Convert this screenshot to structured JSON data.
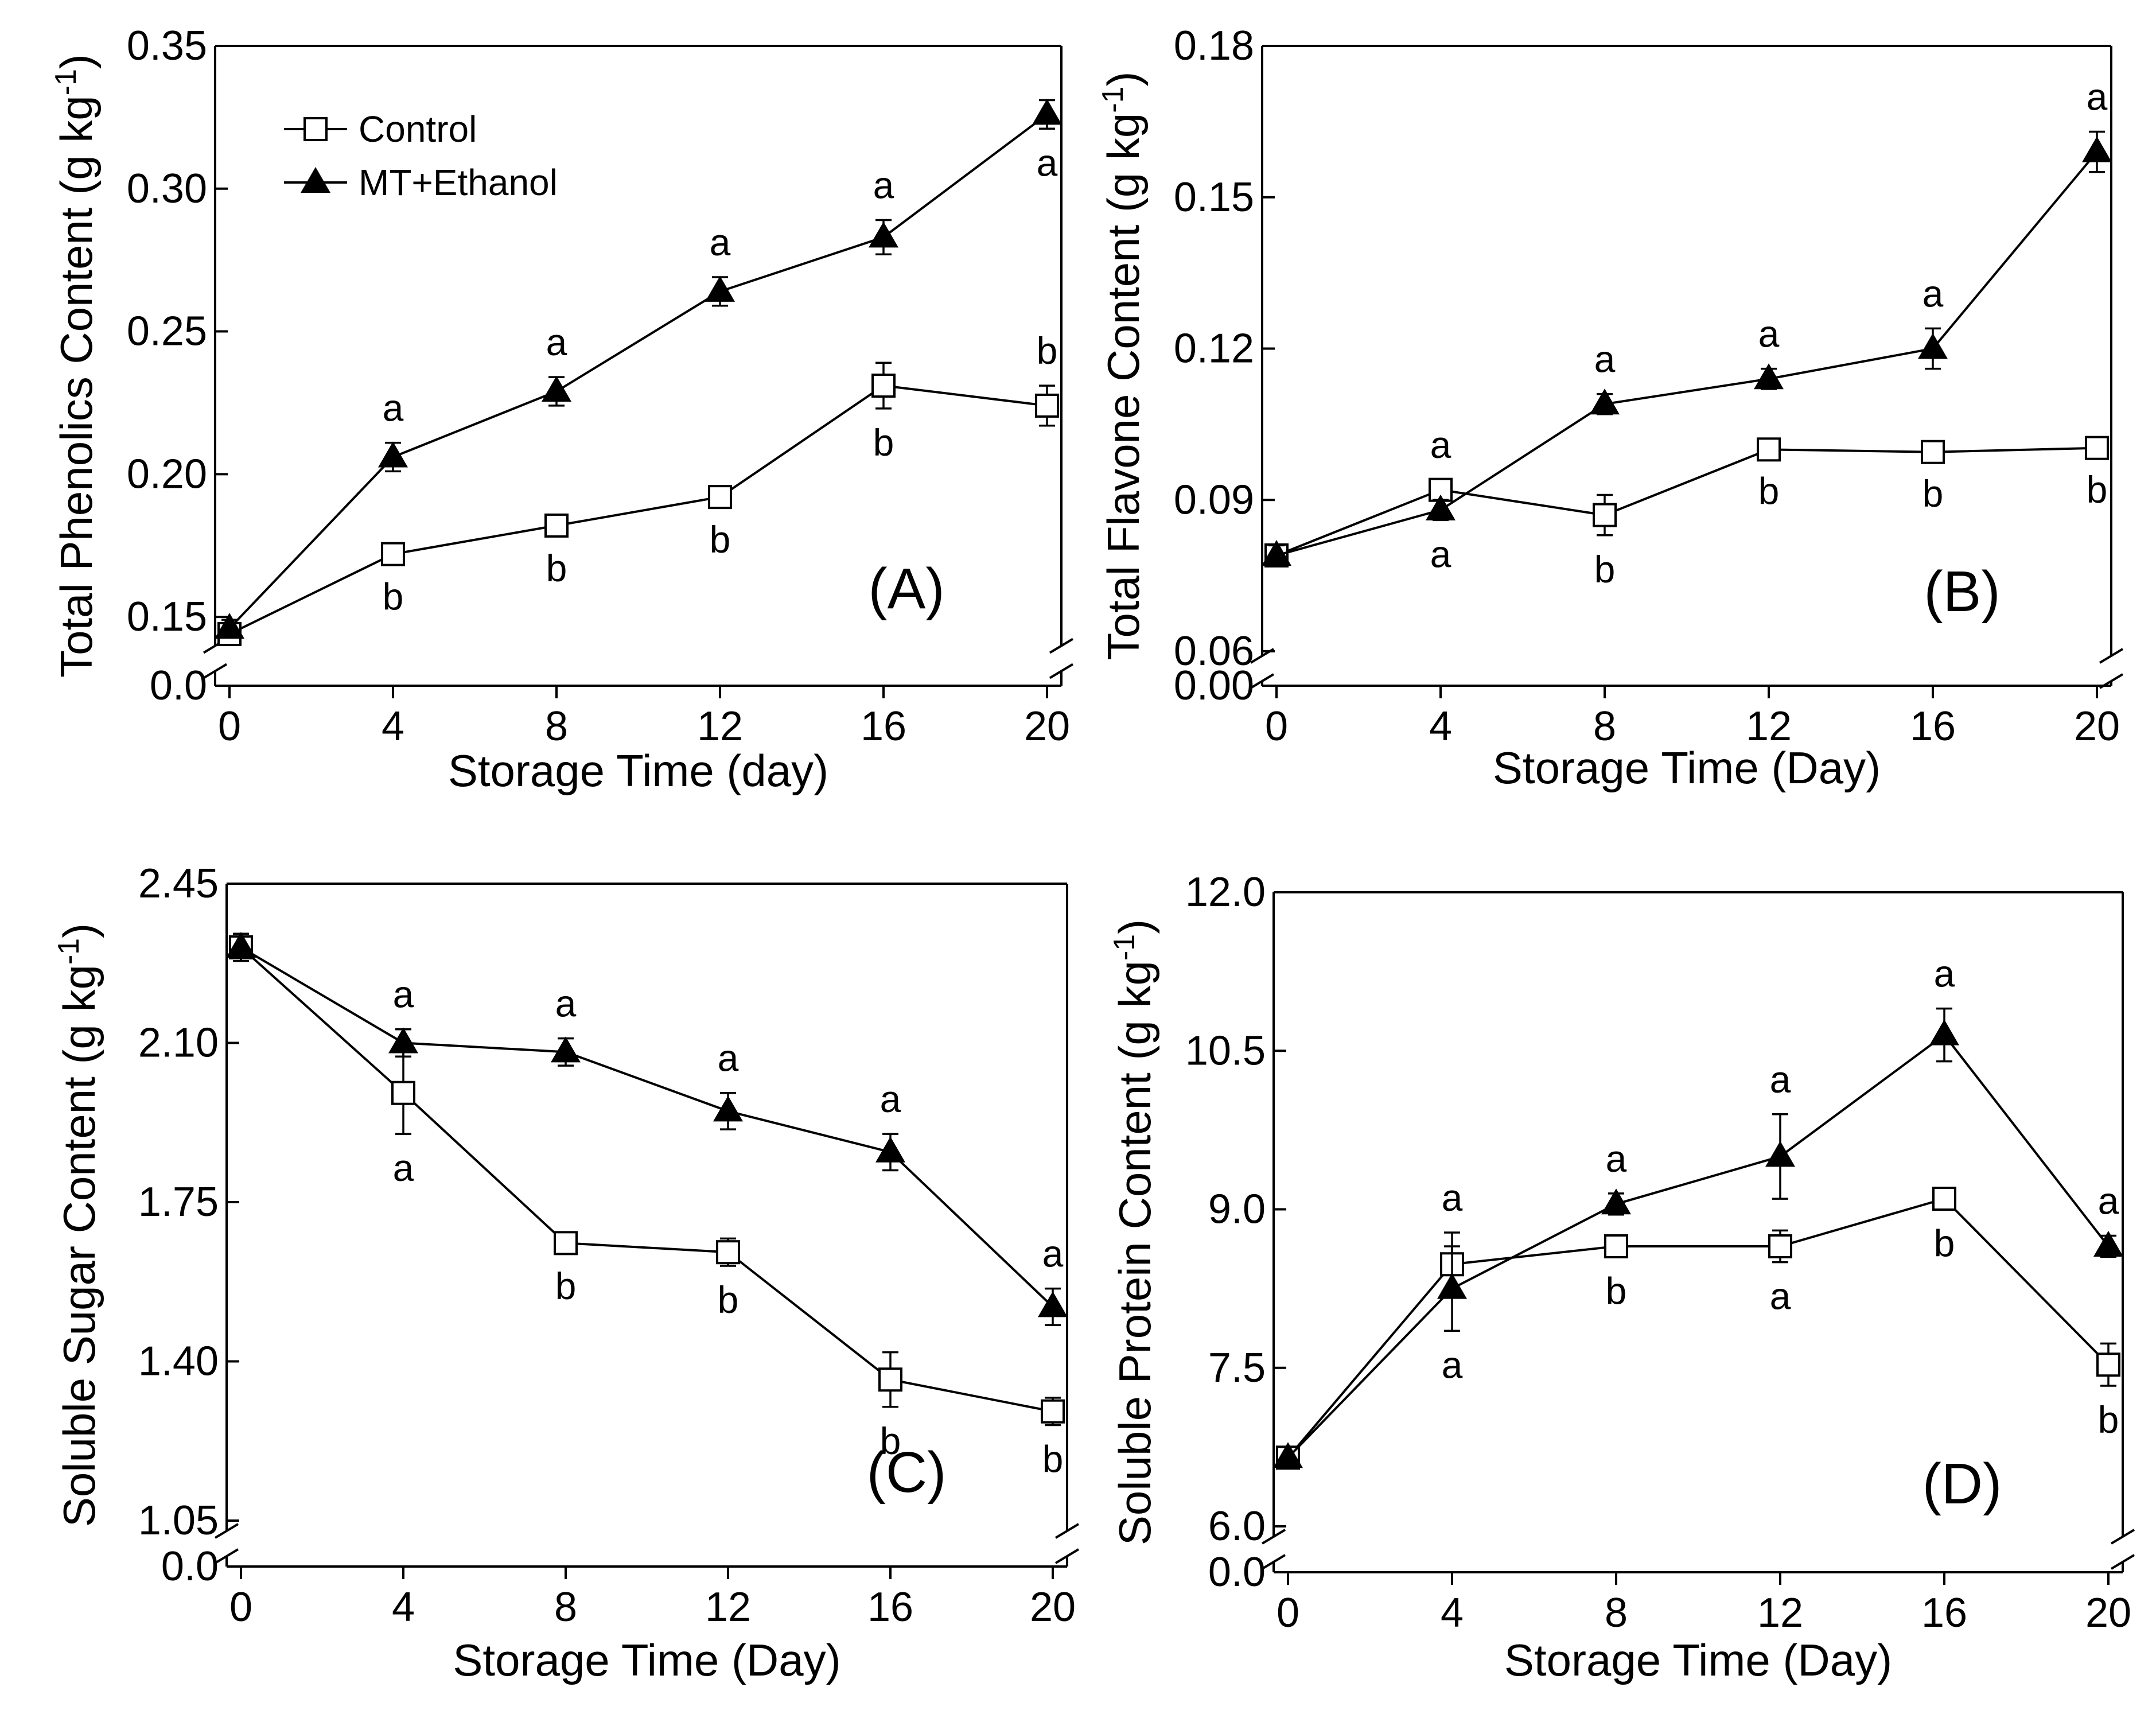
{
  "chart_data": [
    {
      "panel": "A",
      "type": "line",
      "panel_label": "(A)",
      "xlabel": "Storage Time (day)",
      "ylabel": "Total Phenolics Content (g kg",
      "ylabel_exp": "-1",
      "ylabel_close": ")",
      "x": [
        0,
        4,
        8,
        12,
        16,
        20
      ],
      "x_ticks": [
        0,
        4,
        8,
        12,
        16,
        20
      ],
      "x_tick_labels": [
        "0",
        "4",
        "8",
        "12",
        "16",
        "20"
      ],
      "y_ticks": [
        0.15,
        0.2,
        0.25,
        0.3,
        0.35
      ],
      "y_tick_labels": [
        "0.15",
        "0.20",
        "0.25",
        "0.30",
        "0.35"
      ],
      "y_break_tick_label": "0.0",
      "ylim": [
        0.145,
        0.35
      ],
      "legend": {
        "position": "top-left",
        "entries": [
          "Control",
          "MT+Ethanol"
        ]
      },
      "series": [
        {
          "name": "Control",
          "marker": "open-square",
          "values": [
            0.144,
            0.172,
            0.182,
            0.192,
            0.231,
            0.224
          ],
          "errors": [
            0.003,
            0.003,
            0.003,
            0.003,
            0.008,
            0.007
          ],
          "sig": [
            "",
            "b",
            "b",
            "b",
            "b",
            "b"
          ]
        },
        {
          "name": "MT+Ethanol",
          "marker": "filled-triangle",
          "values": [
            0.146,
            0.206,
            0.229,
            0.264,
            0.283,
            0.326
          ],
          "errors": [
            0.003,
            0.005,
            0.005,
            0.005,
            0.006,
            0.005
          ],
          "sig": [
            "",
            "a",
            "a",
            "a",
            "a",
            "a"
          ]
        }
      ]
    },
    {
      "panel": "B",
      "type": "line",
      "panel_label": "(B)",
      "xlabel": "Storage Time (Day)",
      "ylabel": "Total Flavone Content (g kg",
      "ylabel_exp": "-1",
      "ylabel_close": ")",
      "x": [
        0,
        4,
        8,
        12,
        16,
        20
      ],
      "x_ticks": [
        0,
        4,
        8,
        12,
        16,
        20
      ],
      "x_tick_labels": [
        "0",
        "4",
        "8",
        "12",
        "16",
        "20"
      ],
      "y_ticks": [
        0.06,
        0.09,
        0.12,
        0.15,
        0.18
      ],
      "y_tick_labels": [
        "0.06",
        "0.09",
        "0.12",
        "0.15",
        "0.18"
      ],
      "y_break_tick_label": "0.00",
      "ylim": [
        0.06,
        0.18
      ],
      "series": [
        {
          "name": "Control",
          "marker": "open-square",
          "values": [
            0.079,
            0.092,
            0.087,
            0.1,
            0.0995,
            0.1003
          ],
          "errors": [
            0.002,
            0.002,
            0.004,
            0.0015,
            0.0015,
            0.0015
          ],
          "sig": [
            "",
            "a",
            "b",
            "b",
            "b",
            "b"
          ]
        },
        {
          "name": "MT+Ethanol",
          "marker": "filled-triangle",
          "values": [
            0.079,
            0.088,
            0.109,
            0.114,
            0.12,
            0.159
          ],
          "errors": [
            0.002,
            0.002,
            0.002,
            0.002,
            0.004,
            0.004
          ],
          "sig": [
            "",
            "a",
            "a",
            "a",
            "a",
            "a"
          ]
        }
      ]
    },
    {
      "panel": "C",
      "type": "line",
      "panel_label": "(C)",
      "xlabel": "Storage Time (Day)",
      "ylabel": "Soluble Sugar Content (g kg",
      "ylabel_exp": "-1",
      "ylabel_close": ")",
      "x": [
        0,
        4,
        8,
        12,
        16,
        20
      ],
      "x_ticks": [
        0,
        4,
        8,
        12,
        16,
        20
      ],
      "x_tick_labels": [
        "0",
        "4",
        "8",
        "12",
        "16",
        "20"
      ],
      "y_ticks": [
        1.05,
        1.4,
        1.75,
        2.1,
        2.45
      ],
      "y_tick_labels": [
        "1.05",
        "1.40",
        "1.75",
        "2.10",
        "2.45"
      ],
      "y_break_tick_label": "0.0",
      "ylim": [
        1.05,
        2.45
      ],
      "series": [
        {
          "name": "Control",
          "marker": "open-square",
          "values": [
            2.31,
            1.99,
            1.66,
            1.64,
            1.36,
            1.29
          ],
          "errors": [
            0.03,
            0.09,
            0.02,
            0.03,
            0.06,
            0.03
          ],
          "sig": [
            "",
            "a",
            "b",
            "b",
            "b",
            "b"
          ]
        },
        {
          "name": "MT+Ethanol",
          "marker": "filled-triangle",
          "values": [
            2.31,
            2.1,
            2.08,
            1.95,
            1.86,
            1.52
          ],
          "errors": [
            0.03,
            0.03,
            0.03,
            0.04,
            0.04,
            0.04
          ],
          "sig": [
            "",
            "a",
            "a",
            "a",
            "a",
            "a"
          ]
        }
      ]
    },
    {
      "panel": "D",
      "type": "line",
      "panel_label": "(D)",
      "xlabel": "Storage Time (Day)",
      "ylabel": "Soluble Protein Content (g kg",
      "ylabel_exp": "-1",
      "ylabel_close": ")",
      "x": [
        0,
        4,
        8,
        12,
        16,
        20
      ],
      "x_ticks": [
        0,
        4,
        8,
        12,
        16,
        20
      ],
      "x_tick_labels": [
        "0",
        "4",
        "8",
        "12",
        "16",
        "20"
      ],
      "y_ticks": [
        6.0,
        7.5,
        9.0,
        10.5,
        12.0
      ],
      "y_tick_labels": [
        "6.0",
        "7.5",
        "9.0",
        "10.5",
        "12.0"
      ],
      "y_break_tick_label": "0.0",
      "ylim": [
        6.0,
        12.0
      ],
      "series": [
        {
          "name": "Control",
          "marker": "open-square",
          "values": [
            6.65,
            8.48,
            8.65,
            8.65,
            9.1,
            7.53
          ],
          "errors": [
            0.1,
            0.3,
            0.1,
            0.15,
            0.1,
            0.2
          ],
          "sig": [
            "",
            "a",
            "b",
            "a",
            "b",
            "b"
          ]
        },
        {
          "name": "MT+Ethanol",
          "marker": "filled-triangle",
          "values": [
            6.65,
            8.25,
            9.05,
            9.5,
            10.65,
            8.65
          ],
          "errors": [
            0.1,
            0.4,
            0.1,
            0.4,
            0.25,
            0.1
          ],
          "sig": [
            "",
            "a",
            "a",
            "a",
            "a",
            "a"
          ]
        }
      ]
    }
  ]
}
